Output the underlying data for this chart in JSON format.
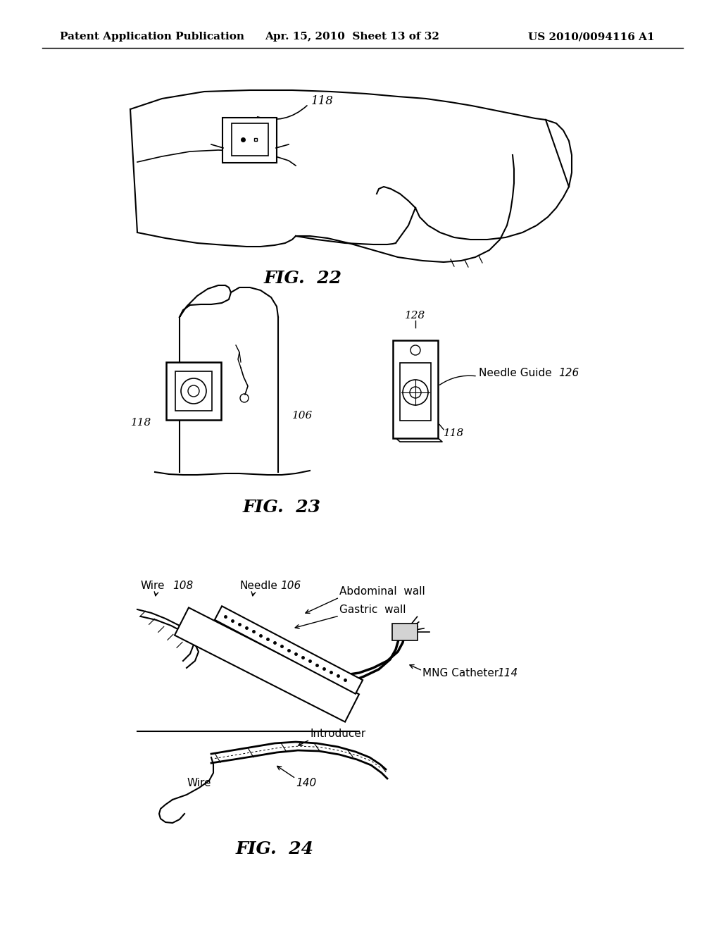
{
  "bg_color": "#ffffff",
  "header_left": "Patent Application Publication",
  "header_mid": "Apr. 15, 2010  Sheet 13 of 32",
  "header_right": "US 2010/0094116 A1",
  "fig22_label": "FIG.  22",
  "fig23_label": "FIG.  23",
  "fig24_label": "FIG.  24",
  "line_color": "#000000",
  "text_color": "#000000",
  "font_size_header": 11,
  "font_size_label": 18,
  "font_size_ref": 11
}
